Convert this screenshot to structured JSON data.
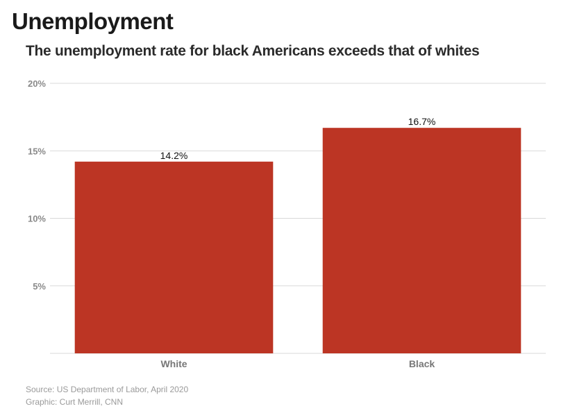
{
  "title": "Unemployment",
  "subtitle": "The unemployment rate for black Americans exceeds that of whites",
  "footer": {
    "source": "Source: US Department of Labor, April 2020",
    "graphic": "Graphic: Curt Merrill, CNN"
  },
  "colors": {
    "bar": "#bc3524",
    "grid": "#d9d9d9"
  },
  "chart_data": {
    "type": "bar",
    "categories": [
      "White",
      "Black"
    ],
    "values": [
      14.2,
      16.7
    ],
    "data_labels": [
      "14.2%",
      "16.7%"
    ],
    "ylim": [
      0,
      20
    ],
    "yticks": [
      5,
      10,
      15,
      20
    ],
    "ytick_labels": [
      "5%",
      "10%",
      "15%",
      "20%"
    ],
    "grid": true
  }
}
